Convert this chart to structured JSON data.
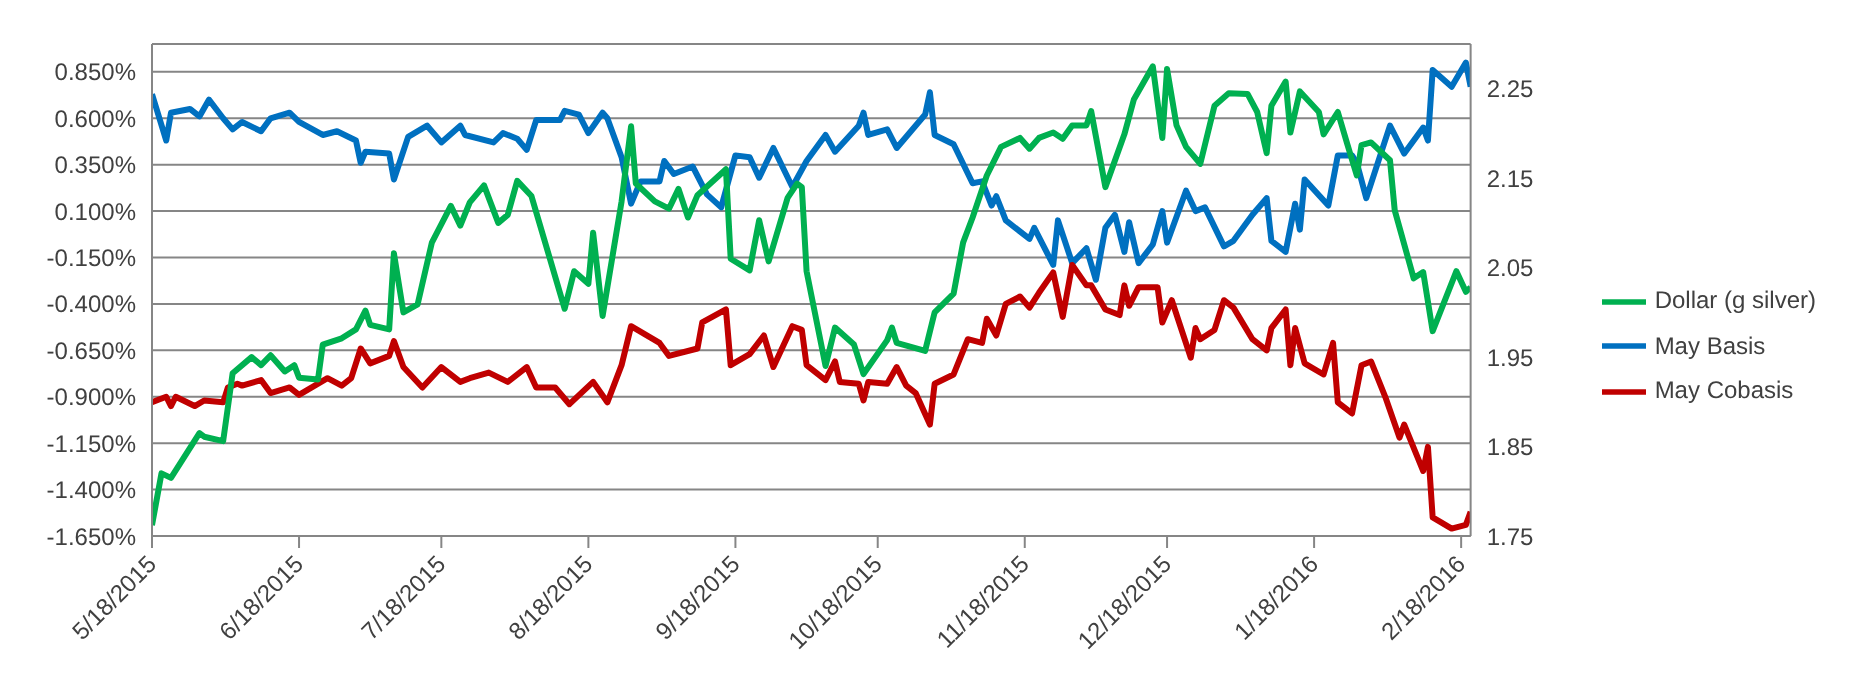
{
  "chart_data": {
    "type": "line",
    "xlim": [
      "2015-05-18",
      "2016-02-20"
    ],
    "xticks": [
      {
        "value": "2015-05-18",
        "label": "5/18/2015"
      },
      {
        "value": "2015-06-18",
        "label": "6/18/2015"
      },
      {
        "value": "2015-07-18",
        "label": "7/18/2015"
      },
      {
        "value": "2015-08-18",
        "label": "8/18/2015"
      },
      {
        "value": "2015-09-18",
        "label": "9/18/2015"
      },
      {
        "value": "2015-10-18",
        "label": "10/18/2015"
      },
      {
        "value": "2015-11-18",
        "label": "11/18/2015"
      },
      {
        "value": "2015-12-18",
        "label": "12/18/2015"
      },
      {
        "value": "2016-01-18",
        "label": "1/18/2016"
      },
      {
        "value": "2016-02-18",
        "label": "2/18/2016"
      }
    ],
    "ylim": [
      -1.65,
      1.0
    ],
    "yticks": [
      {
        "value": -1.65,
        "label": "-1.650%"
      },
      {
        "value": -1.4,
        "label": "-1.400%"
      },
      {
        "value": -1.15,
        "label": "-1.150%"
      },
      {
        "value": -0.9,
        "label": "-0.900%"
      },
      {
        "value": -0.65,
        "label": "-0.650%"
      },
      {
        "value": -0.4,
        "label": "-0.400%"
      },
      {
        "value": -0.15,
        "label": "-0.150%"
      },
      {
        "value": 0.1,
        "label": "0.100%"
      },
      {
        "value": 0.35,
        "label": "0.350%"
      },
      {
        "value": 0.6,
        "label": "0.600%"
      },
      {
        "value": 0.85,
        "label": "0.850%"
      }
    ],
    "y2lim": [
      1.75,
      2.3
    ],
    "y2ticks": [
      1.75,
      1.85,
      1.95,
      2.05,
      2.15,
      2.25
    ],
    "grid": "y",
    "legend": "right",
    "series": [
      {
        "name": "May Basis",
        "color": "#0070c0",
        "x": [
          "2015-05-18",
          "2015-05-21",
          "2015-05-22",
          "2015-05-26",
          "2015-05-28",
          "2015-05-30",
          "2015-06-02",
          "2015-06-04",
          "2015-06-06",
          "2015-06-10",
          "2015-06-12",
          "2015-06-16",
          "2015-06-18",
          "2015-06-23",
          "2015-06-26",
          "2015-06-30",
          "2015-07-01",
          "2015-07-02",
          "2015-07-07",
          "2015-07-08",
          "2015-07-11",
          "2015-07-15",
          "2015-07-18",
          "2015-07-22",
          "2015-07-23",
          "2015-07-29",
          "2015-07-31",
          "2015-08-03",
          "2015-08-05",
          "2015-08-07",
          "2015-08-12",
          "2015-08-13",
          "2015-08-16",
          "2015-08-18",
          "2015-08-21",
          "2015-08-22",
          "2015-08-25",
          "2015-08-27",
          "2015-08-29",
          "2015-09-02",
          "2015-09-03",
          "2015-09-05",
          "2015-09-09",
          "2015-09-12",
          "2015-09-15",
          "2015-09-18",
          "2015-09-21",
          "2015-09-23",
          "2015-09-26",
          "2015-09-30",
          "2015-10-03",
          "2015-10-07",
          "2015-10-09",
          "2015-10-14",
          "2015-10-15",
          "2015-10-16",
          "2015-10-20",
          "2015-10-22",
          "2015-10-28",
          "2015-10-29",
          "2015-10-30",
          "2015-11-03",
          "2015-11-07",
          "2015-11-09",
          "2015-11-11",
          "2015-11-12",
          "2015-11-14",
          "2015-11-19",
          "2015-11-20",
          "2015-11-24",
          "2015-11-25",
          "2015-11-28",
          "2015-12-01",
          "2015-12-03",
          "2015-12-05",
          "2015-12-07",
          "2015-12-09",
          "2015-12-10",
          "2015-12-12",
          "2015-12-15",
          "2015-12-17",
          "2015-12-18",
          "2015-12-22",
          "2015-12-24",
          "2015-12-26",
          "2015-12-30",
          "2016-01-01",
          "2016-01-05",
          "2016-01-08",
          "2016-01-09",
          "2016-01-12",
          "2016-01-14",
          "2016-01-15",
          "2016-01-16",
          "2016-01-21",
          "2016-01-23",
          "2016-01-26",
          "2016-01-27",
          "2016-01-29",
          "2016-02-03",
          "2016-02-06",
          "2016-02-10",
          "2016-02-11",
          "2016-02-12",
          "2016-02-16",
          "2016-02-19",
          "2016-02-20"
        ],
        "values": [
          0.73,
          0.48,
          0.63,
          0.65,
          0.61,
          0.7,
          0.6,
          0.54,
          0.58,
          0.53,
          0.6,
          0.63,
          0.58,
          0.51,
          0.53,
          0.48,
          0.36,
          0.42,
          0.41,
          0.27,
          0.5,
          0.56,
          0.47,
          0.56,
          0.51,
          0.47,
          0.52,
          0.49,
          0.43,
          0.59,
          0.59,
          0.64,
          0.62,
          0.52,
          0.63,
          0.6,
          0.39,
          0.14,
          0.26,
          0.26,
          0.37,
          0.3,
          0.34,
          0.19,
          0.12,
          0.4,
          0.39,
          0.28,
          0.44,
          0.23,
          0.37,
          0.51,
          0.42,
          0.56,
          0.63,
          0.51,
          0.54,
          0.44,
          0.62,
          0.74,
          0.51,
          0.46,
          0.25,
          0.26,
          0.13,
          0.18,
          0.05,
          -0.05,
          0.01,
          -0.19,
          0.05,
          -0.18,
          -0.1,
          -0.27,
          0.01,
          0.08,
          -0.12,
          0.04,
          -0.18,
          -0.08,
          0.1,
          -0.07,
          0.21,
          0.1,
          0.12,
          -0.09,
          -0.06,
          0.08,
          0.17,
          -0.06,
          -0.12,
          0.14,
          0.0,
          0.27,
          0.13,
          0.4,
          0.4,
          0.36,
          0.17,
          0.56,
          0.41,
          0.55,
          0.48,
          0.86,
          0.77,
          0.9,
          0.77
        ]
      },
      {
        "name": "May Cobasis",
        "color": "#c00000",
        "x": [
          "2015-05-18",
          "2015-05-21",
          "2015-05-22",
          "2015-05-23",
          "2015-05-27",
          "2015-05-29",
          "2015-06-02",
          "2015-06-03",
          "2015-06-05",
          "2015-06-06",
          "2015-06-10",
          "2015-06-12",
          "2015-06-16",
          "2015-06-18",
          "2015-06-24",
          "2015-06-27",
          "2015-06-29",
          "2015-07-01",
          "2015-07-03",
          "2015-07-07",
          "2015-07-08",
          "2015-07-10",
          "2015-07-14",
          "2015-07-18",
          "2015-07-22",
          "2015-07-24",
          "2015-07-28",
          "2015-08-01",
          "2015-08-05",
          "2015-08-07",
          "2015-08-11",
          "2015-08-14",
          "2015-08-19",
          "2015-08-22",
          "2015-08-25",
          "2015-08-27",
          "2015-09-02",
          "2015-09-04",
          "2015-09-10",
          "2015-09-11",
          "2015-09-16",
          "2015-09-17",
          "2015-09-21",
          "2015-09-24",
          "2015-09-26",
          "2015-09-30",
          "2015-10-02",
          "2015-10-03",
          "2015-10-07",
          "2015-10-09",
          "2015-10-10",
          "2015-10-14",
          "2015-10-15",
          "2015-10-16",
          "2015-10-20",
          "2015-10-22",
          "2015-10-24",
          "2015-10-26",
          "2015-10-29",
          "2015-10-30",
          "2015-11-03",
          "2015-11-06",
          "2015-11-09",
          "2015-11-10",
          "2015-11-12",
          "2015-11-14",
          "2015-11-17",
          "2015-11-19",
          "2015-11-21",
          "2015-11-24",
          "2015-11-26",
          "2015-11-28",
          "2015-12-01",
          "2015-12-02",
          "2015-12-05",
          "2015-12-08",
          "2015-12-09",
          "2015-12-10",
          "2015-12-12",
          "2015-12-16",
          "2015-12-17",
          "2015-12-19",
          "2015-12-23",
          "2015-12-24",
          "2015-12-25",
          "2015-12-28",
          "2015-12-30",
          "2016-01-01",
          "2016-01-05",
          "2016-01-08",
          "2016-01-09",
          "2016-01-12",
          "2016-01-13",
          "2016-01-14",
          "2016-01-16",
          "2016-01-20",
          "2016-01-22",
          "2016-01-23",
          "2016-01-26",
          "2016-01-28",
          "2016-01-30",
          "2016-02-02",
          "2016-02-05",
          "2016-02-06",
          "2016-02-10",
          "2016-02-11",
          "2016-02-12",
          "2016-02-16",
          "2016-02-19",
          "2016-02-20"
        ],
        "values": [
          -0.93,
          -0.9,
          -0.95,
          -0.9,
          -0.95,
          -0.92,
          -0.93,
          -0.85,
          -0.83,
          -0.84,
          -0.81,
          -0.88,
          -0.85,
          -0.89,
          -0.8,
          -0.84,
          -0.8,
          -0.64,
          -0.72,
          -0.68,
          -0.6,
          -0.74,
          -0.85,
          -0.74,
          -0.82,
          -0.8,
          -0.77,
          -0.82,
          -0.74,
          -0.85,
          -0.85,
          -0.94,
          -0.82,
          -0.93,
          -0.73,
          -0.52,
          -0.61,
          -0.68,
          -0.64,
          -0.5,
          -0.43,
          -0.73,
          -0.67,
          -0.57,
          -0.74,
          -0.52,
          -0.54,
          -0.73,
          -0.81,
          -0.71,
          -0.82,
          -0.83,
          -0.92,
          -0.82,
          -0.83,
          -0.74,
          -0.84,
          -0.88,
          -1.05,
          -0.83,
          -0.78,
          -0.59,
          -0.61,
          -0.48,
          -0.57,
          -0.4,
          -0.36,
          -0.42,
          -0.34,
          -0.23,
          -0.47,
          -0.19,
          -0.3,
          -0.3,
          -0.43,
          -0.46,
          -0.3,
          -0.41,
          -0.31,
          -0.31,
          -0.5,
          -0.38,
          -0.69,
          -0.53,
          -0.59,
          -0.54,
          -0.38,
          -0.42,
          -0.59,
          -0.65,
          -0.53,
          -0.43,
          -0.73,
          -0.53,
          -0.72,
          -0.78,
          -0.61,
          -0.93,
          -0.99,
          -0.73,
          -0.71,
          -0.9,
          -1.12,
          -1.05,
          -1.3,
          -1.17,
          -1.55,
          -1.61,
          -1.59,
          -1.52
        ]
      },
      {
        "name": "Dollar (g silver)",
        "color": "#00b050",
        "axis": "y2",
        "x": [
          "2015-05-18",
          "2015-05-20",
          "2015-05-22",
          "2015-05-28",
          "2015-05-29",
          "2015-06-02",
          "2015-06-04",
          "2015-06-08",
          "2015-06-10",
          "2015-06-12",
          "2015-06-15",
          "2015-06-17",
          "2015-06-18",
          "2015-06-22",
          "2015-06-23",
          "2015-06-27",
          "2015-06-30",
          "2015-07-02",
          "2015-07-03",
          "2015-07-07",
          "2015-07-08",
          "2015-07-10",
          "2015-07-13",
          "2015-07-16",
          "2015-07-20",
          "2015-07-22",
          "2015-07-24",
          "2015-07-27",
          "2015-07-30",
          "2015-08-01",
          "2015-08-03",
          "2015-08-06",
          "2015-08-13",
          "2015-08-15",
          "2015-08-18",
          "2015-08-19",
          "2015-08-21",
          "2015-08-25",
          "2015-08-27",
          "2015-08-28",
          "2015-09-01",
          "2015-09-04",
          "2015-09-06",
          "2015-09-08",
          "2015-09-10",
          "2015-09-16",
          "2015-09-17",
          "2015-09-21",
          "2015-09-23",
          "2015-09-25",
          "2015-09-29",
          "2015-10-01",
          "2015-10-02",
          "2015-10-03",
          "2015-10-07",
          "2015-10-09",
          "2015-10-13",
          "2015-10-15",
          "2015-10-20",
          "2015-10-21",
          "2015-10-22",
          "2015-10-28",
          "2015-10-30",
          "2015-11-03",
          "2015-11-05",
          "2015-11-07",
          "2015-11-10",
          "2015-11-13",
          "2015-11-17",
          "2015-11-19",
          "2015-11-21",
          "2015-11-24",
          "2015-11-26",
          "2015-11-28",
          "2015-12-01",
          "2015-12-02",
          "2015-12-05",
          "2015-12-09",
          "2015-12-11",
          "2015-12-15",
          "2015-12-17",
          "2015-12-18",
          "2015-12-20",
          "2015-12-22",
          "2015-12-25",
          "2015-12-28",
          "2015-12-31",
          "2016-01-04",
          "2016-01-06",
          "2016-01-08",
          "2016-01-09",
          "2016-01-12",
          "2016-01-13",
          "2016-01-15",
          "2016-01-19",
          "2016-01-20",
          "2016-01-23",
          "2016-01-25",
          "2016-01-27",
          "2016-01-28",
          "2016-01-30",
          "2016-02-03",
          "2016-02-04",
          "2016-02-08",
          "2016-02-10",
          "2016-02-12",
          "2016-02-17",
          "2016-02-19",
          "2016-02-20"
        ],
        "values": [
          1.762,
          1.82,
          1.815,
          1.865,
          1.861,
          1.856,
          1.932,
          1.95,
          1.941,
          1.952,
          1.934,
          1.941,
          1.927,
          1.925,
          1.964,
          1.971,
          1.981,
          2.002,
          1.986,
          1.981,
          2.066,
          2.0,
          2.009,
          2.078,
          2.119,
          2.097,
          2.123,
          2.142,
          2.1,
          2.109,
          2.147,
          2.13,
          2.004,
          2.046,
          2.032,
          2.089,
          1.996,
          2.124,
          2.208,
          2.144,
          2.124,
          2.116,
          2.138,
          2.106,
          2.131,
          2.16,
          2.06,
          2.047,
          2.103,
          2.057,
          2.128,
          2.144,
          2.14,
          2.046,
          1.94,
          1.983,
          1.964,
          1.931,
          1.969,
          1.983,
          1.966,
          1.957,
          2.0,
          2.021,
          2.078,
          2.106,
          2.153,
          2.185,
          2.195,
          2.183,
          2.195,
          2.201,
          2.194,
          2.209,
          2.209,
          2.225,
          2.14,
          2.199,
          2.238,
          2.275,
          2.195,
          2.272,
          2.209,
          2.185,
          2.166,
          2.231,
          2.245,
          2.244,
          2.224,
          2.178,
          2.231,
          2.258,
          2.201,
          2.247,
          2.224,
          2.199,
          2.224,
          2.188,
          2.153,
          2.187,
          2.19,
          2.17,
          2.114,
          2.038,
          2.045,
          1.979,
          2.046,
          2.023,
          2.028
        ]
      }
    ]
  }
}
